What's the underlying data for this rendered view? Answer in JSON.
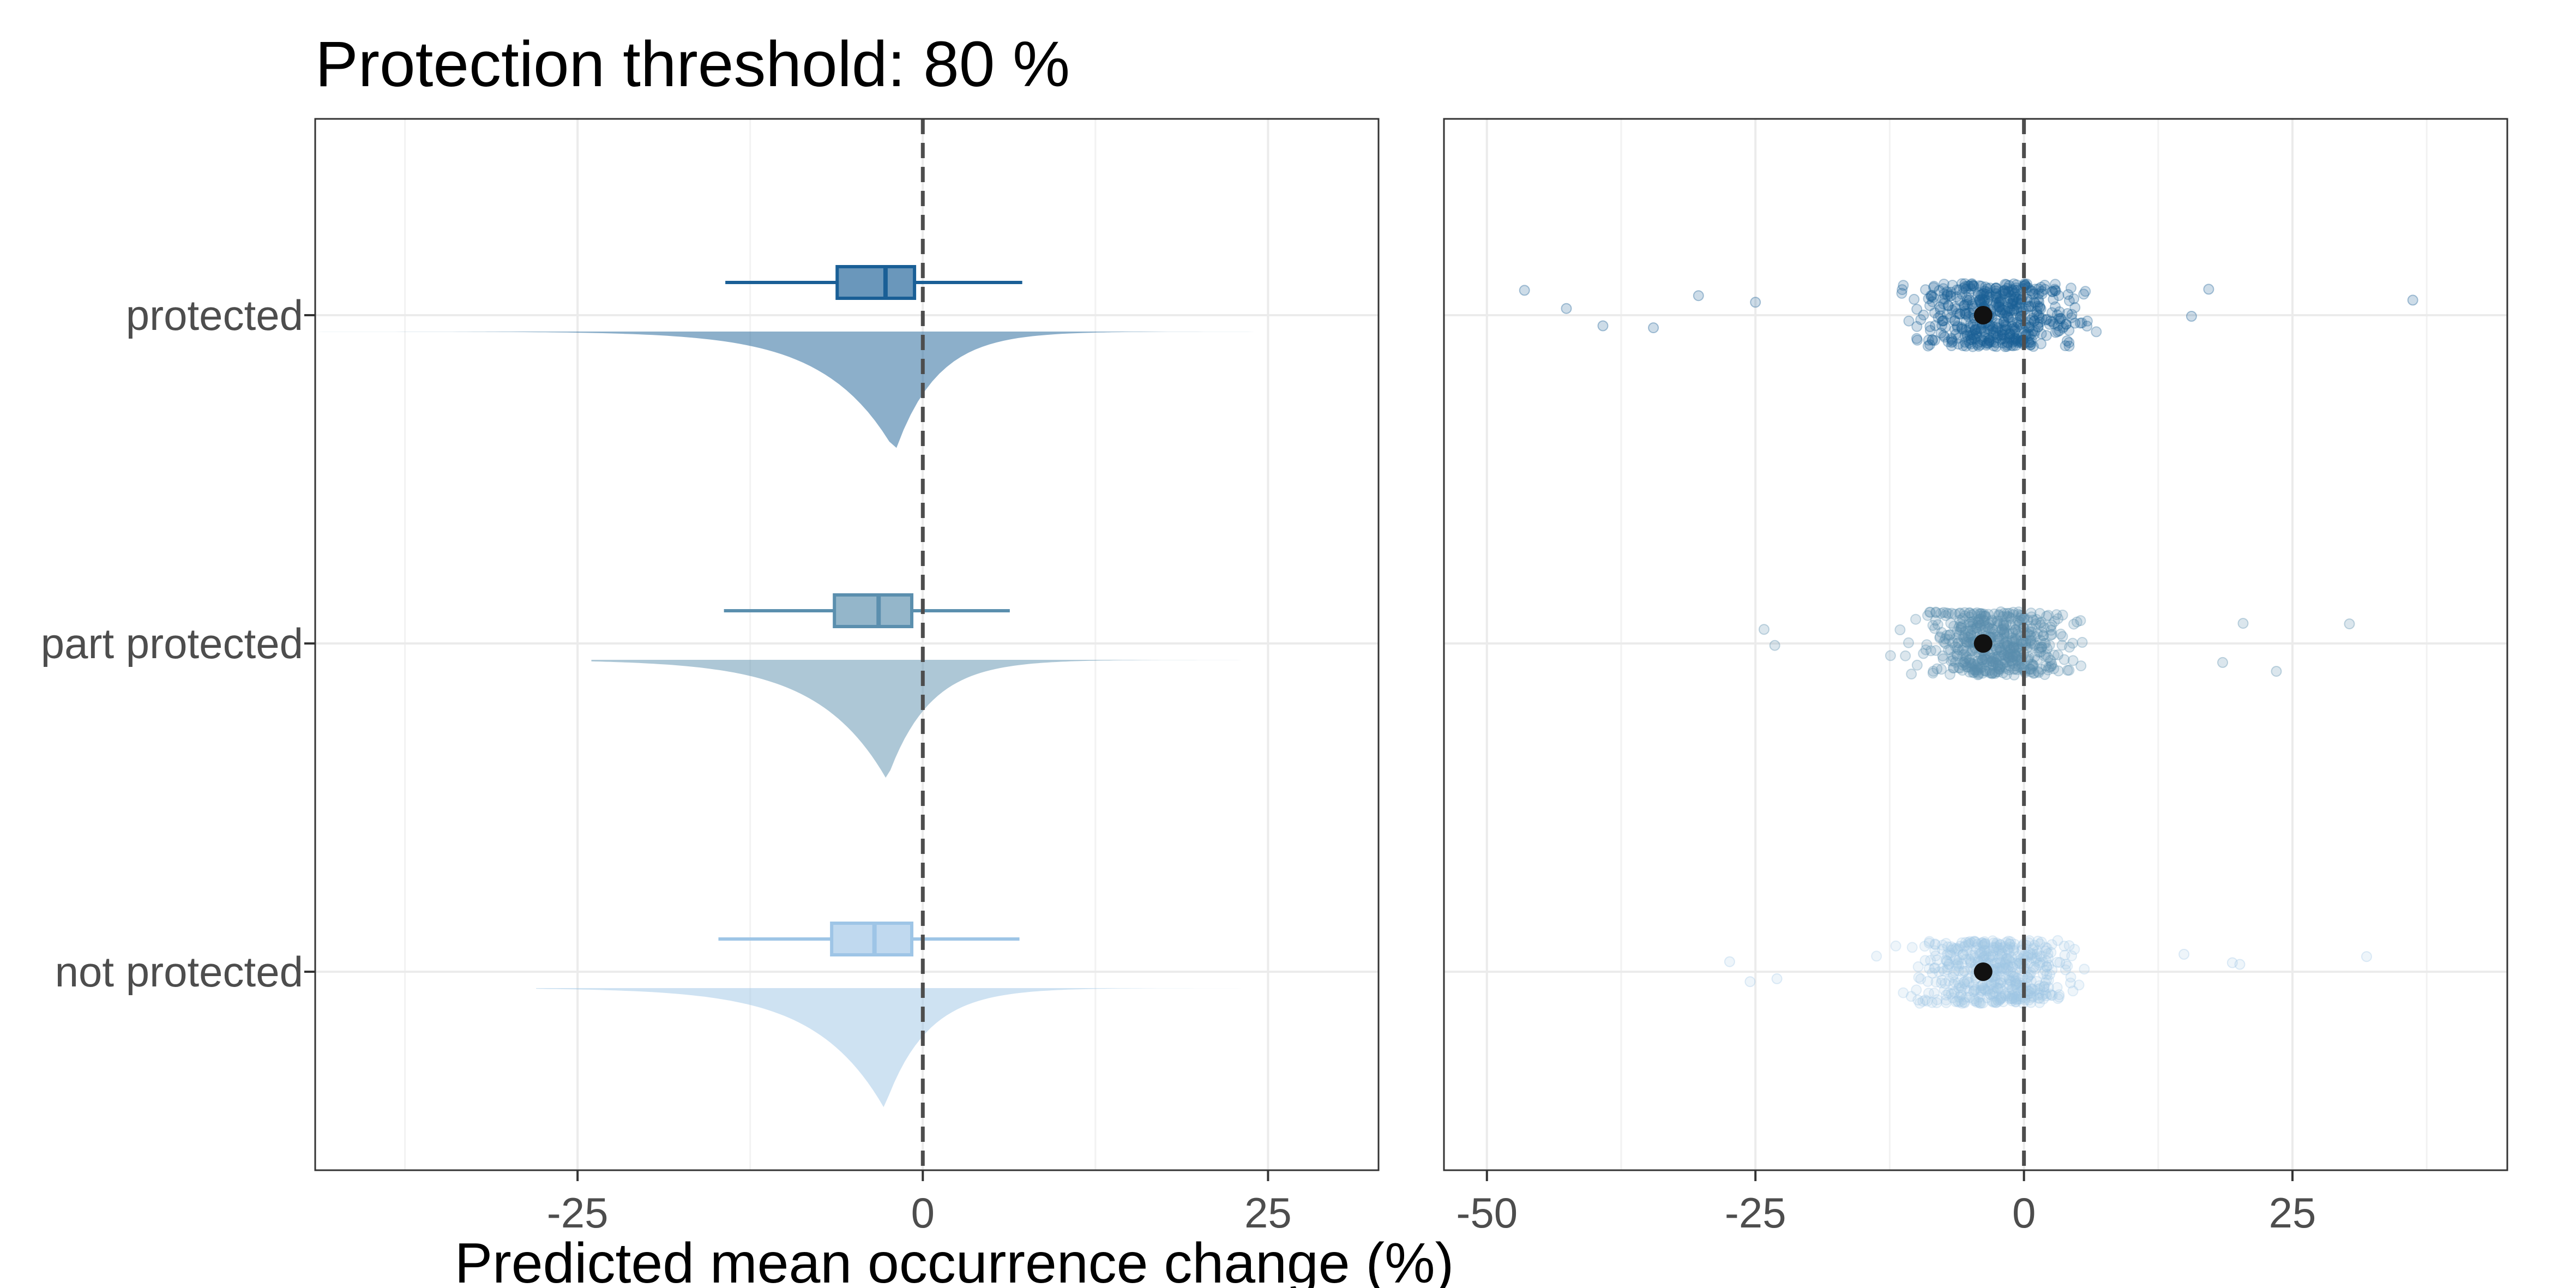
{
  "chart_data": {
    "type": "raincloud",
    "title": "Protection threshold: 80 %",
    "xlabel": "Predicted mean occurrence change (%)",
    "ylabel": "",
    "categories": [
      "protected",
      "part protected",
      "not protected"
    ],
    "colors": {
      "protected": "#1a5f96",
      "part protected": "#5b8fae",
      "not protected": "#9ec5e6"
    },
    "panels": [
      {
        "name": "distribution",
        "xlim": [
          -44,
          33
        ],
        "xticks": [
          -25,
          0,
          25
        ],
        "xtick_labels": [
          "-25",
          "0",
          "25"
        ],
        "reference_line_x": 0,
        "series": [
          {
            "name": "protected",
            "box": {
              "whisker_low": -14.3,
              "q1": -6.2,
              "median": -2.7,
              "q3": -0.6,
              "whisker_high": 7.2
            },
            "density_mode": -2.0,
            "range": [
              -46,
              37
            ]
          },
          {
            "name": "part protected",
            "box": {
              "whisker_low": -14.4,
              "q1": -6.4,
              "median": -3.2,
              "q3": -0.8,
              "whisker_high": 6.3
            },
            "density_mode": -2.6,
            "range": [
              -24,
              31
            ]
          },
          {
            "name": "not protected",
            "box": {
              "whisker_low": -14.8,
              "q1": -6.6,
              "median": -3.5,
              "q3": -0.8,
              "whisker_high": 7.0
            },
            "density_mode": -2.8,
            "range": [
              -28,
              33
            ]
          }
        ]
      },
      {
        "name": "points",
        "xlim": [
          -54,
          45
        ],
        "xticks": [
          -50,
          -25,
          0,
          25
        ],
        "xtick_labels": [
          "-50",
          "-25",
          "0",
          "25"
        ],
        "reference_line_x": 0,
        "series": [
          {
            "name": "protected",
            "mean": -3.8,
            "outliers": [
              -46.5,
              -42.6,
              -39.2,
              -34.5,
              -30.3,
              -25.0,
              15.6,
              17.2,
              36.2
            ]
          },
          {
            "name": "part protected",
            "mean": -3.8,
            "outliers": [
              -24.2,
              -23.2,
              18.5,
              20.4,
              23.5,
              30.3
            ]
          },
          {
            "name": "not protected",
            "mean": -3.8,
            "outliers": [
              -27.4,
              -25.5,
              -23.0,
              14.9,
              19.4,
              20.1,
              31.9
            ]
          }
        ]
      }
    ]
  }
}
